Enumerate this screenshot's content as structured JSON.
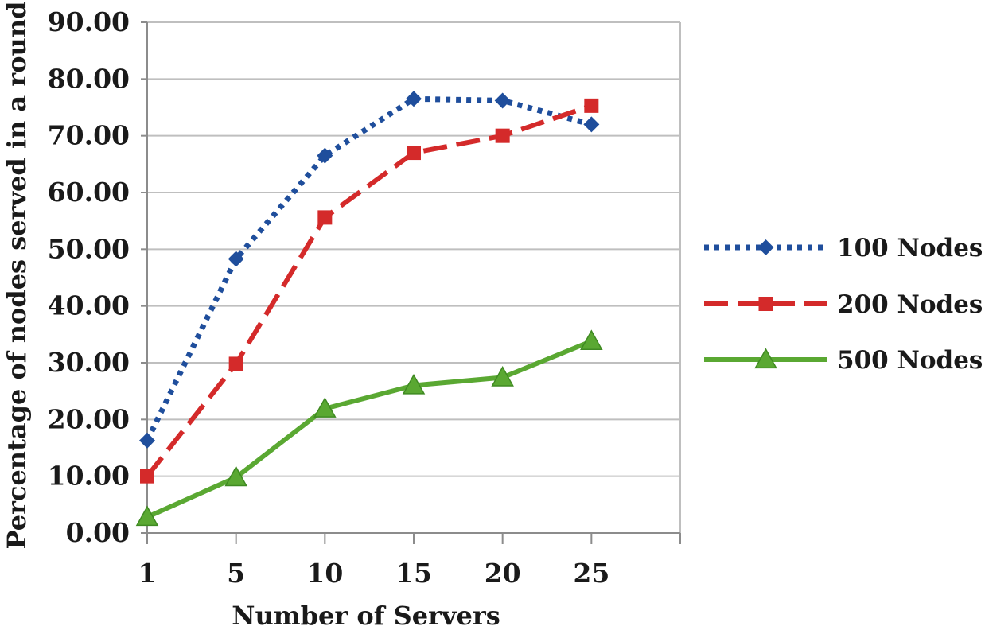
{
  "chart_data": {
    "type": "line",
    "title": "",
    "xlabel": "Number of Servers",
    "ylabel": "Percentage of nodes served in a round",
    "categories": [
      "1",
      "5",
      "10",
      "15",
      "20",
      "25"
    ],
    "y_tick_labels": [
      "0.00",
      "10.00",
      "20.00",
      "30.00",
      "40.00",
      "50.00",
      "60.00",
      "70.00",
      "80.00",
      "90.00"
    ],
    "ylim": [
      0,
      90
    ],
    "grid": true,
    "legend_position": "right",
    "series": [
      {
        "name": "100 Nodes",
        "values": [
          16.3,
          48.3,
          66.5,
          76.5,
          76.2,
          72.0
        ],
        "color": "#1f4e9c",
        "line_style": "dotted",
        "marker": "diamond"
      },
      {
        "name": "200 Nodes",
        "values": [
          10.0,
          29.8,
          55.6,
          67.0,
          70.0,
          75.3
        ],
        "color": "#d42a2a",
        "line_style": "dashed",
        "marker": "square"
      },
      {
        "name": "500 Nodes",
        "values": [
          2.8,
          9.8,
          21.9,
          26.0,
          27.4,
          33.8
        ],
        "color": "#5aa832",
        "line_style": "solid",
        "marker": "triangle"
      }
    ]
  }
}
